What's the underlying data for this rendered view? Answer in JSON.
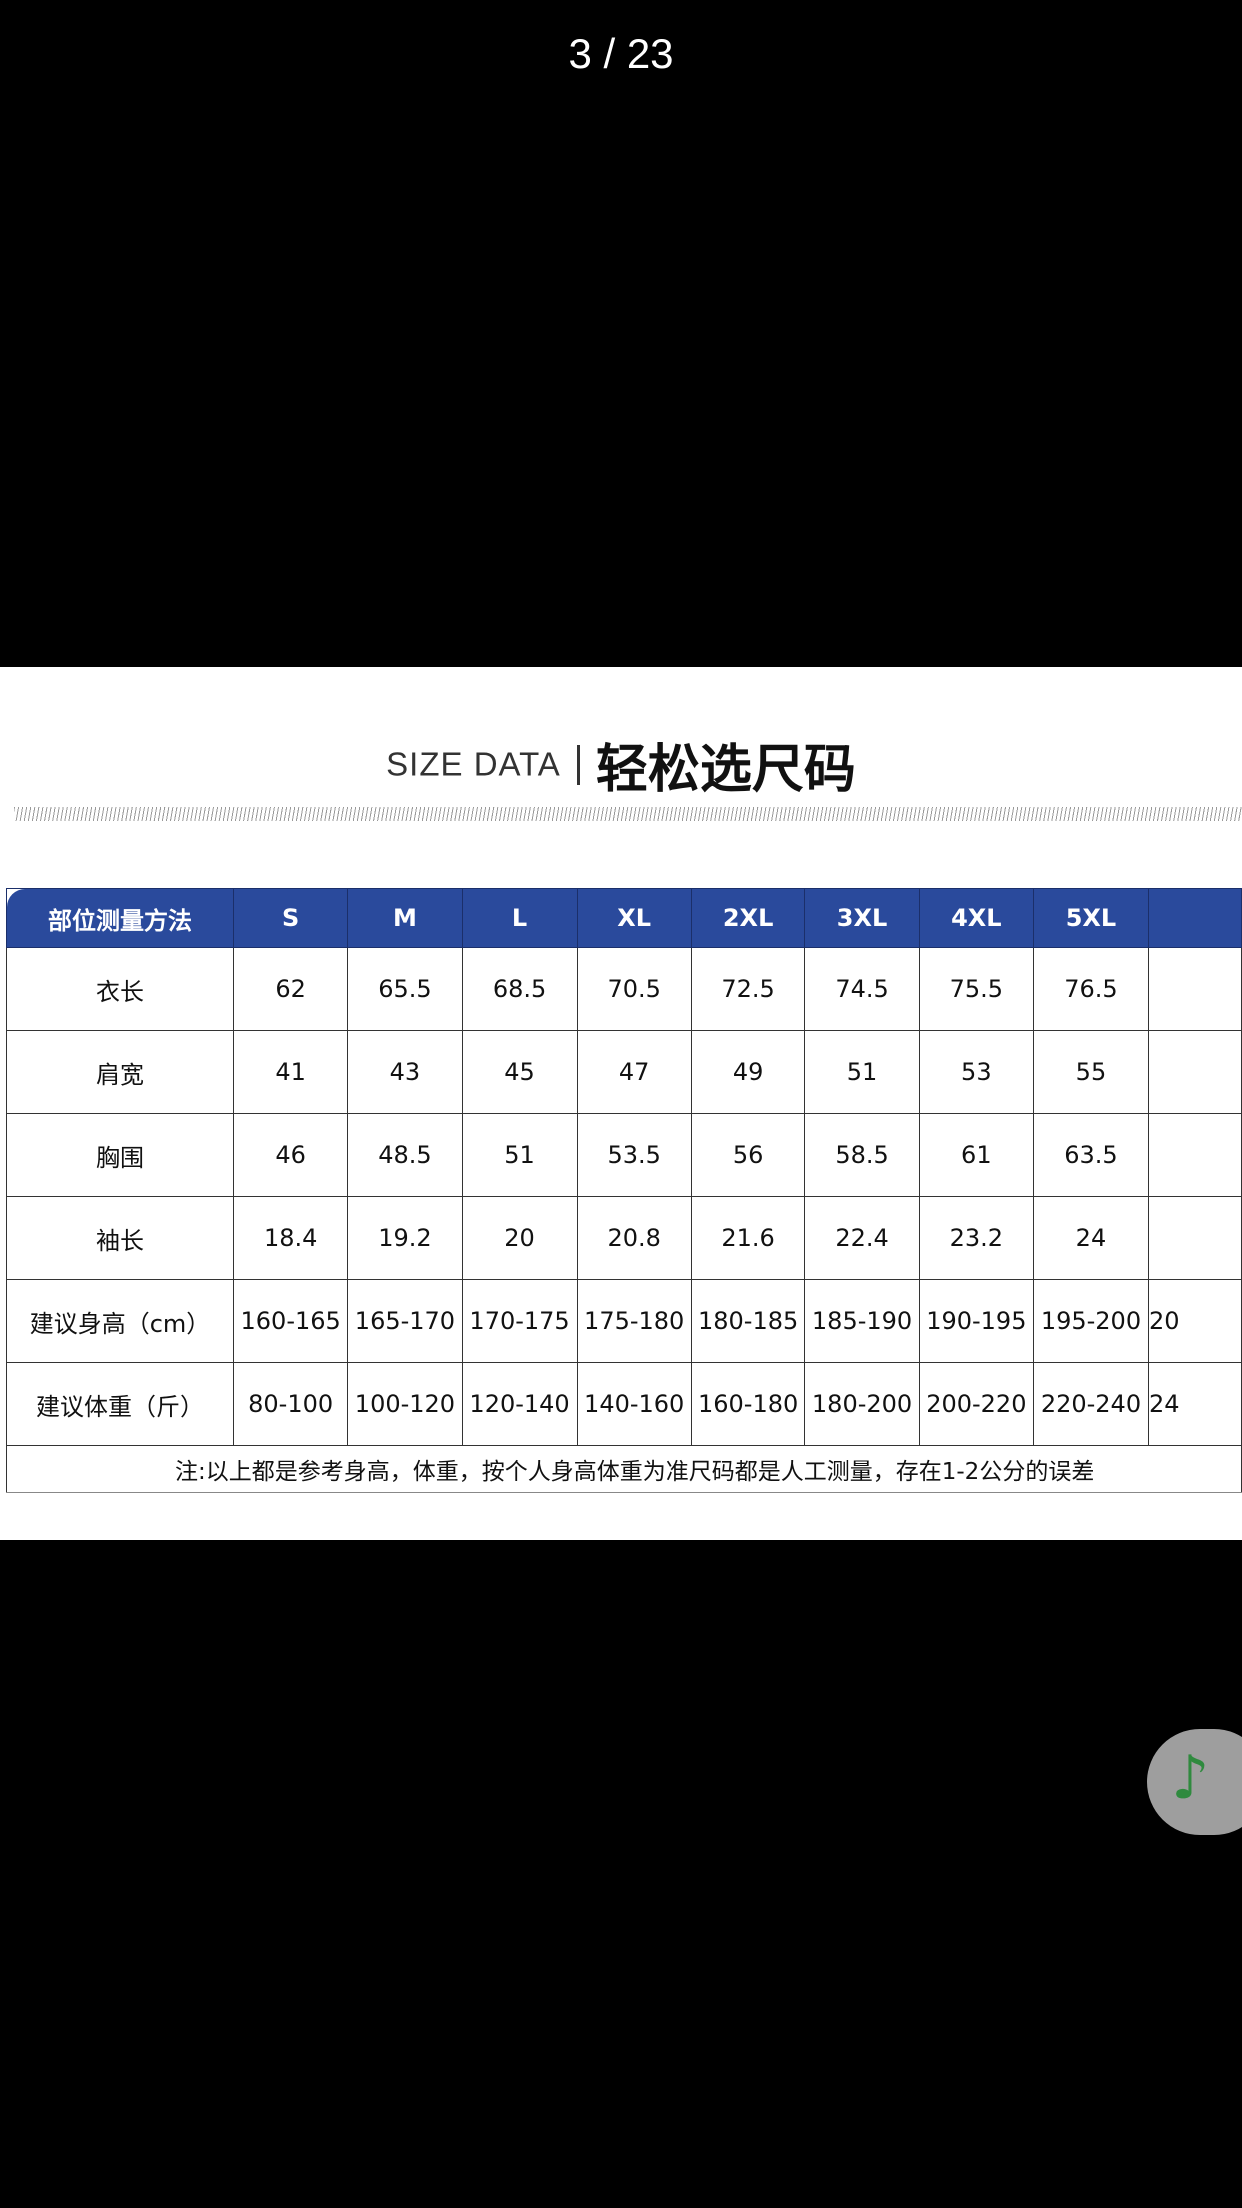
{
  "viewer": {
    "page_counter": "3 / 23"
  },
  "image": {
    "title_en": "SIZE DATA",
    "title_zh": "轻松选尺码",
    "table": {
      "header_label": "部位测量方法",
      "sizes": [
        "S",
        "M",
        "L",
        "XL",
        "2XL",
        "3XL",
        "4XL",
        "5XL",
        ""
      ],
      "rows": [
        {
          "label": "衣长",
          "values": [
            "62",
            "65.5",
            "68.5",
            "70.5",
            "72.5",
            "74.5",
            "75.5",
            "76.5",
            ""
          ]
        },
        {
          "label": "肩宽",
          "values": [
            "41",
            "43",
            "45",
            "47",
            "49",
            "51",
            "53",
            "55",
            ""
          ]
        },
        {
          "label": "胸围",
          "values": [
            "46",
            "48.5",
            "51",
            "53.5",
            "56",
            "58.5",
            "61",
            "63.5",
            ""
          ]
        },
        {
          "label": "袖长",
          "values": [
            "18.4",
            "19.2",
            "20",
            "20.8",
            "21.6",
            "22.4",
            "23.2",
            "24",
            ""
          ]
        },
        {
          "label": "建议身高（cm）",
          "values": [
            "160-165",
            "165-170",
            "170-175",
            "175-180",
            "180-185",
            "185-190",
            "190-195",
            "195-200",
            "20"
          ]
        },
        {
          "label": "建议体重（斤）",
          "values": [
            "80-100",
            "100-120",
            "120-140",
            "140-160",
            "160-180",
            "180-200",
            "200-220",
            "220-240",
            "24"
          ]
        }
      ],
      "note": "注:以上都是参考身高，体重，按个人身高体重为准尺码都是人工测量，存在1-2公分的误差"
    },
    "colors": {
      "header_bg": "#2a4a9c"
    }
  },
  "music_button": {
    "icon": "music-note-icon",
    "color": "#2f8a3e"
  }
}
